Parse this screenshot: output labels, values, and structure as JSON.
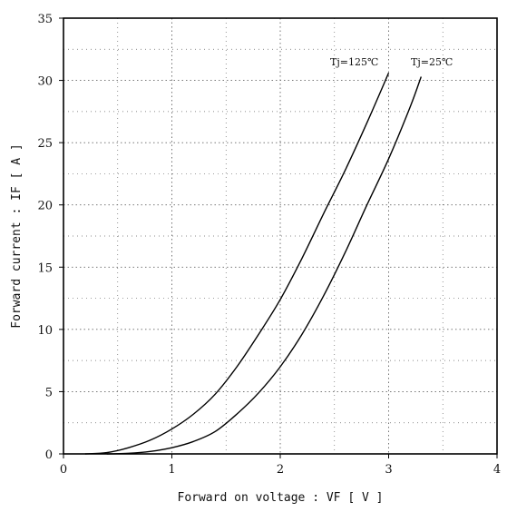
{
  "chart_data": {
    "type": "line",
    "title": "",
    "xlabel": "Forward on voltage  :  VF  [ V ]",
    "ylabel": "Forward current  :  IF  [ A ]",
    "xlim": [
      0,
      4
    ],
    "ylim": [
      0,
      35
    ],
    "x_ticks": [
      "0",
      "1",
      "2",
      "3",
      "4"
    ],
    "y_ticks": [
      "0",
      "5",
      "10",
      "15",
      "20",
      "25",
      "30",
      "35"
    ],
    "grid": "dotted",
    "series": [
      {
        "name": "Tj=125℃",
        "x": [
          0.2,
          0.4,
          0.6,
          0.8,
          1.0,
          1.2,
          1.4,
          1.6,
          1.8,
          2.0,
          2.2,
          2.4,
          2.6,
          2.8,
          3.0
        ],
        "y": [
          0,
          0.1,
          0.5,
          1.1,
          2.0,
          3.2,
          4.8,
          7.0,
          9.6,
          12.4,
          15.7,
          19.3,
          22.8,
          26.6,
          30.6
        ]
      },
      {
        "name": "Tj=25℃",
        "x": [
          0.4,
          0.6,
          0.8,
          1.0,
          1.2,
          1.4,
          1.6,
          1.8,
          2.0,
          2.2,
          2.4,
          2.6,
          2.8,
          3.0,
          3.2,
          3.3
        ],
        "y": [
          0,
          0.05,
          0.2,
          0.5,
          1.0,
          1.8,
          3.2,
          4.9,
          7.0,
          9.6,
          12.7,
          16.2,
          20.0,
          23.7,
          27.9,
          30.3
        ]
      }
    ]
  }
}
